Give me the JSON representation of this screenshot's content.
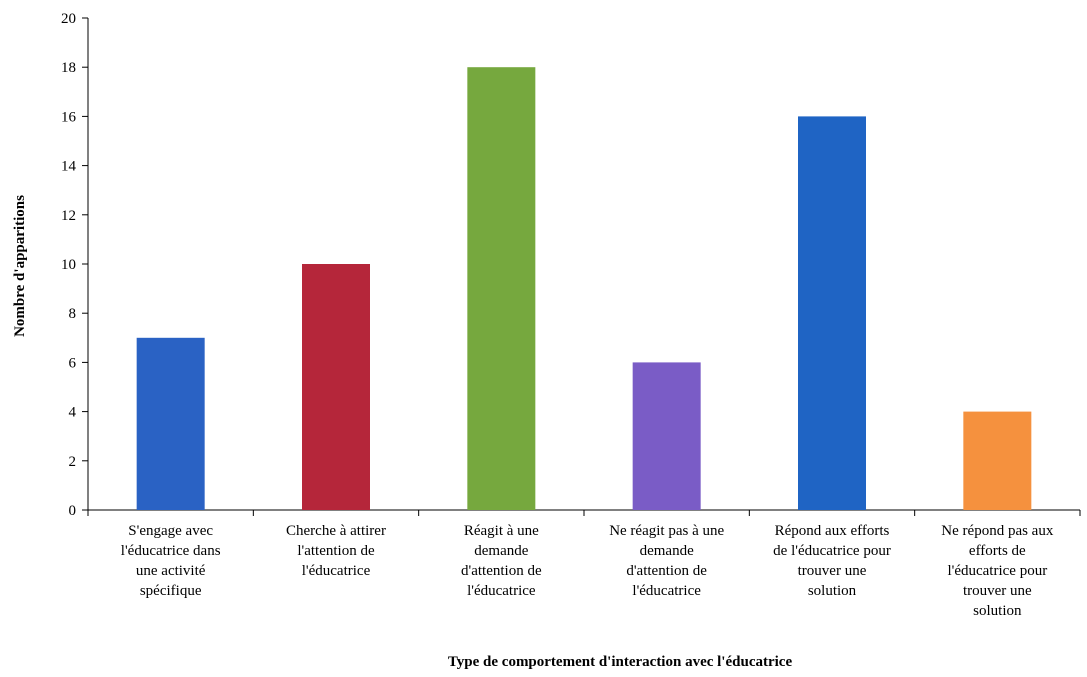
{
  "chart_data": {
    "type": "bar",
    "title": "",
    "xlabel": "Type de comportement d'interaction avec l'éducatrice",
    "ylabel": "Nombre d'apparitions",
    "ylim": [
      0,
      20
    ],
    "yticks": [
      0,
      2,
      4,
      6,
      8,
      10,
      12,
      14,
      16,
      18,
      20
    ],
    "grid": false,
    "categories": [
      [
        "S'engage avec",
        "l'éducatrice dans",
        "une activité",
        "spécifique"
      ],
      [
        "Cherche à attirer",
        "l'attention de",
        "l'éducatrice"
      ],
      [
        "Réagit à une",
        "demande",
        "d'attention de",
        "l'éducatrice"
      ],
      [
        "Ne réagit pas à une",
        "demande",
        "d'attention de",
        "l'éducatrice"
      ],
      [
        "Répond aux efforts",
        "de l'éducatrice pour",
        "trouver une",
        "solution"
      ],
      [
        "Ne répond pas aux",
        "efforts de",
        "l'éducatrice pour",
        "trouver une",
        "solution"
      ]
    ],
    "values": [
      7,
      10,
      18,
      6,
      16,
      4
    ],
    "colors": [
      "#2a62c4",
      "#b5263a",
      "#76a83e",
      "#7a5cc6",
      "#1f64c4",
      "#f5913e"
    ]
  }
}
